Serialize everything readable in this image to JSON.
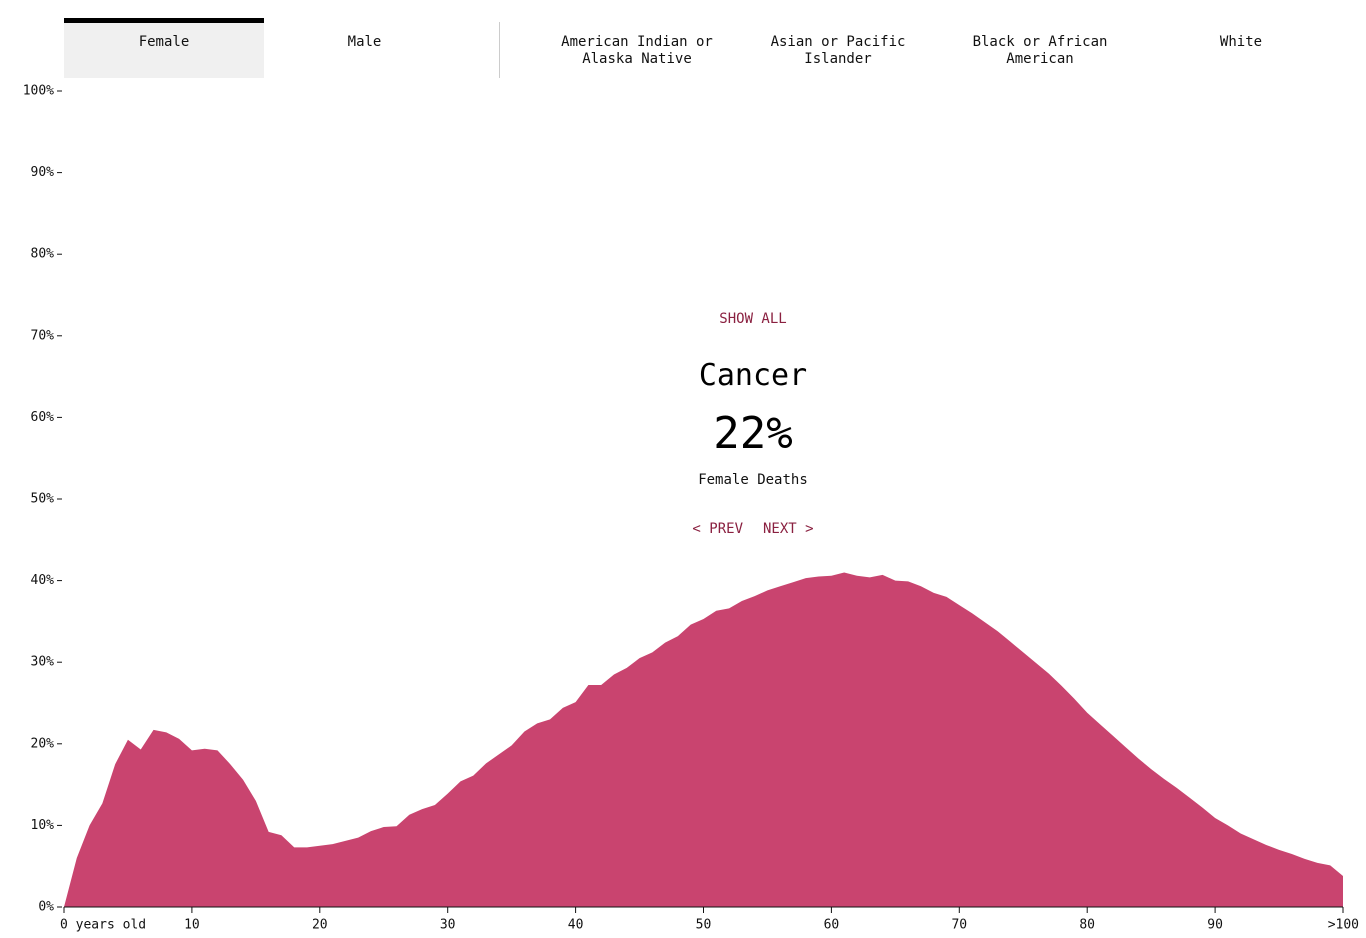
{
  "tabs": {
    "sex": [
      "Female",
      "Male"
    ],
    "race": [
      "American Indian or Alaska Native",
      "Asian or Pacific Islander",
      "Black or African American",
      "White"
    ]
  },
  "panel": {
    "show_all": "SHOW ALL",
    "cause": "Cancer",
    "share": "22%",
    "group": "Female Deaths",
    "prev": "< PREV",
    "next": "NEXT >"
  },
  "chart_data": {
    "type": "area",
    "color": "#c9446f",
    "x": [
      0,
      1,
      2,
      3,
      4,
      5,
      6,
      7,
      8,
      9,
      10,
      11,
      12,
      13,
      14,
      15,
      16,
      17,
      18,
      19,
      20,
      21,
      22,
      23,
      24,
      25,
      26,
      27,
      28,
      29,
      30,
      31,
      32,
      33,
      34,
      35,
      36,
      37,
      38,
      39,
      40,
      41,
      42,
      43,
      44,
      45,
      46,
      47,
      48,
      49,
      50,
      51,
      52,
      53,
      54,
      55,
      56,
      57,
      58,
      59,
      60,
      61,
      62,
      63,
      64,
      65,
      66,
      67,
      68,
      69,
      70,
      71,
      72,
      73,
      74,
      75,
      76,
      77,
      78,
      79,
      80,
      81,
      82,
      83,
      84,
      85,
      86,
      87,
      88,
      89,
      90,
      91,
      92,
      93,
      94,
      95,
      96,
      97,
      98,
      99,
      100
    ],
    "values": [
      0,
      6,
      10,
      12.7,
      17.5,
      20.5,
      19.3,
      21.7,
      21.4,
      20.6,
      19.2,
      19.4,
      19.2,
      17.5,
      15.6,
      13,
      9.2,
      8.8,
      7.3,
      7.3,
      7.5,
      7.7,
      8.1,
      8.5,
      9.3,
      9.8,
      9.9,
      11.3,
      12,
      12.5,
      13.9,
      15.4,
      16.1,
      17.6,
      18.7,
      19.8,
      21.5,
      22.5,
      23,
      24.4,
      25.1,
      27.2,
      27.2,
      28.5,
      29.3,
      30.5,
      31.2,
      32.4,
      33.2,
      34.6,
      35.3,
      36.3,
      36.6,
      37.5,
      38.1,
      38.8,
      39.3,
      39.8,
      40.3,
      40.5,
      40.6,
      41,
      40.6,
      40.4,
      40.7,
      40,
      39.9,
      39.3,
      38.5,
      38,
      37,
      36,
      34.9,
      33.8,
      32.5,
      31.2,
      29.9,
      28.6,
      27.1,
      25.5,
      23.8,
      22.4,
      21,
      19.6,
      18.2,
      16.9,
      15.7,
      14.6,
      13.4,
      12.2,
      10.9,
      10,
      9,
      8.3,
      7.6,
      7,
      6.5,
      5.9,
      5.4,
      5.1,
      3.8
    ],
    "xlim": [
      0,
      100
    ],
    "ylim": [
      0,
      100
    ],
    "xticks": [
      {
        "value": 0,
        "label": "0 years old"
      },
      10,
      20,
      30,
      40,
      50,
      60,
      70,
      80,
      90,
      {
        "value": 100,
        "label": ">100"
      }
    ],
    "yticks": [
      {
        "value": 0,
        "label": "0%"
      },
      {
        "value": 10,
        "label": "10%"
      },
      {
        "value": 20,
        "label": "20%"
      },
      {
        "value": 30,
        "label": "30%"
      },
      {
        "value": 40,
        "label": "40%"
      },
      {
        "value": 50,
        "label": "50%"
      },
      {
        "value": 60,
        "label": "60%"
      },
      {
        "value": 70,
        "label": "70%"
      },
      {
        "value": 80,
        "label": "80%"
      },
      {
        "value": 90,
        "label": "90%"
      },
      {
        "value": 100,
        "label": "100%"
      }
    ]
  }
}
